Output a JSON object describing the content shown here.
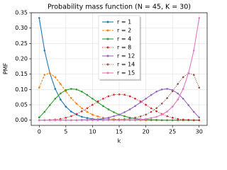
{
  "chart_data": {
    "type": "line",
    "title": "Probability mass function (N = 45, K = 30)",
    "xlabel": "k",
    "ylabel": "PMF",
    "x": [
      0,
      1,
      2,
      3,
      4,
      5,
      6,
      7,
      8,
      9,
      10,
      11,
      12,
      13,
      14,
      15,
      16,
      17,
      18,
      19,
      20,
      21,
      22,
      23,
      24,
      25,
      26,
      27,
      28,
      29,
      30
    ],
    "series": [
      {
        "name": "r = 1",
        "color": "#1f77b4",
        "dash": "solid",
        "values": [
          0.333,
          0.227,
          0.153,
          0.102,
          0.067,
          0.044,
          0.028,
          0.018,
          0.011,
          0.007,
          0.004,
          0.002,
          0.001,
          0.001,
          0,
          0,
          0,
          0,
          0,
          0,
          0,
          0,
          0,
          0,
          0,
          0,
          0,
          0,
          0,
          0,
          0
        ]
      },
      {
        "name": "r = 2",
        "color": "#ff7f0e",
        "dash": "dashed",
        "values": [
          0.106,
          0.148,
          0.153,
          0.14,
          0.118,
          0.094,
          0.072,
          0.054,
          0.039,
          0.027,
          0.018,
          0.012,
          0.008,
          0.005,
          0.003,
          0.002,
          0.001,
          0.001,
          0,
          0,
          0,
          0,
          0,
          0,
          0,
          0,
          0,
          0,
          0,
          0,
          0
        ]
      },
      {
        "name": "r = 4",
        "color": "#2ca02c",
        "dash": "solid",
        "values": [
          0.009,
          0.027,
          0.049,
          0.07,
          0.087,
          0.098,
          0.102,
          0.1,
          0.093,
          0.082,
          0.07,
          0.058,
          0.046,
          0.035,
          0.026,
          0.018,
          0.013,
          0.008,
          0.005,
          0.003,
          0.002,
          0.001,
          0.001,
          0,
          0,
          0,
          0,
          0,
          0,
          0,
          0
        ]
      },
      {
        "name": "r = 8",
        "color": "#d62728",
        "dash": "dotted",
        "values": [
          0,
          0,
          0.001,
          0.002,
          0.004,
          0.008,
          0.013,
          0.02,
          0.029,
          0.039,
          0.05,
          0.061,
          0.07,
          0.078,
          0.083,
          0.084,
          0.083,
          0.078,
          0.07,
          0.061,
          0.05,
          0.039,
          0.029,
          0.02,
          0.013,
          0.008,
          0.004,
          0.002,
          0.001,
          0,
          0
        ]
      },
      {
        "name": "r = 12",
        "color": "#9467bd",
        "dash": "solid",
        "values": [
          0,
          0,
          0,
          0,
          0,
          0,
          0,
          0,
          0.001,
          0.001,
          0.002,
          0.003,
          0.005,
          0.008,
          0.013,
          0.018,
          0.026,
          0.035,
          0.046,
          0.058,
          0.07,
          0.082,
          0.093,
          0.1,
          0.102,
          0.098,
          0.087,
          0.07,
          0.049,
          0.027,
          0.009
        ]
      },
      {
        "name": "r = 14",
        "color": "#8c564b",
        "dash": "dotted",
        "values": [
          0,
          0,
          0,
          0,
          0,
          0,
          0,
          0,
          0,
          0,
          0,
          0,
          0,
          0.001,
          0.001,
          0.002,
          0.003,
          0.005,
          0.008,
          0.012,
          0.018,
          0.027,
          0.039,
          0.054,
          0.072,
          0.094,
          0.118,
          0.14,
          0.153,
          0.148,
          0.106
        ]
      },
      {
        "name": "r = 15",
        "color": "#e377c2",
        "dash": "solid",
        "values": [
          0,
          0,
          0,
          0,
          0,
          0,
          0,
          0,
          0,
          0,
          0,
          0,
          0,
          0,
          0,
          0,
          0,
          0.001,
          0.001,
          0.002,
          0.004,
          0.007,
          0.011,
          0.018,
          0.028,
          0.044,
          0.067,
          0.102,
          0.153,
          0.227,
          0.333
        ]
      }
    ],
    "xlim": [
      -1.5,
      31.5
    ],
    "xticks": [
      0,
      5,
      10,
      15,
      20,
      25,
      30
    ],
    "ylim": [
      -0.017,
      0.35
    ],
    "yticks": [
      {
        "value": 0,
        "label": "0.00"
      },
      {
        "value": 0.05,
        "label": "0.05"
      },
      {
        "value": 0.1,
        "label": "0.10"
      },
      {
        "value": 0.15,
        "label": "0.15"
      },
      {
        "value": 0.2,
        "label": "0.20"
      },
      {
        "value": 0.25,
        "label": "0.25"
      },
      {
        "value": 0.3,
        "label": "0.30"
      },
      {
        "value": 0.35,
        "label": "0.35"
      }
    ],
    "grid": true,
    "legend": "upper center"
  }
}
